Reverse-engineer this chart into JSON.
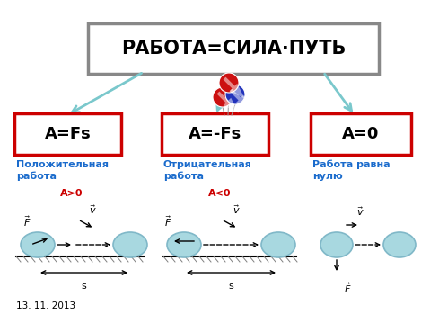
{
  "title": "РАБОТА=СИЛА·ПУТЬ",
  "title_box_color": "#888888",
  "arrow_color": "#7ac8cc",
  "box_colors": [
    "#cc0000",
    "#cc0000",
    "#cc0000"
  ],
  "box_labels": [
    "A=Fs",
    "A=-Fs",
    "A=0"
  ],
  "blue_text_color": "#1a6bcc",
  "red_text_color": "#cc0000",
  "date_text": "13. 11. 2013",
  "pos_label": "Положительная\nработа",
  "neg_label": "Отрицательная\nработа",
  "zero_label": "Работа равна\nнулю",
  "bg_color": "#ffffff",
  "ball_face": "#a8d8e0",
  "ball_edge": "#80b8c8"
}
